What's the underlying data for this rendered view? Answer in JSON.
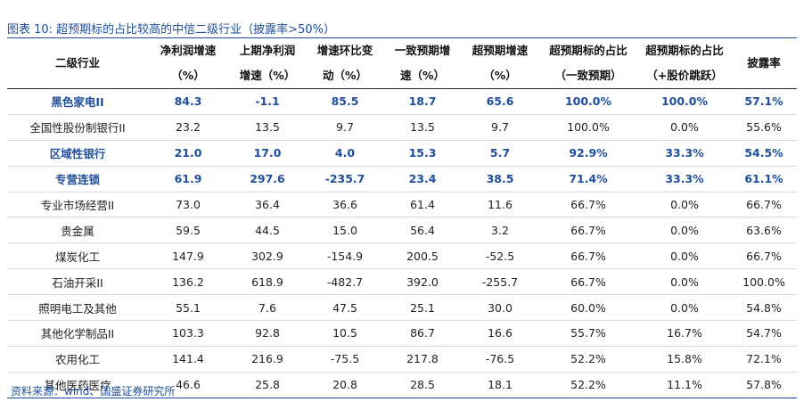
{
  "title": "图表 10:  超预期标的占比较高的中信二级行业（披露率>50%）",
  "source": "资料来源：wind、国盛证券研究所",
  "colors": {
    "accent": "#1f4e9c",
    "text": "#222222"
  },
  "headers": [
    [
      "二级行业"
    ],
    [
      "净利润增速",
      "（%）"
    ],
    [
      "上期净利润",
      "增速（%）"
    ],
    [
      "增速环比变",
      "动（%）"
    ],
    [
      "一致预期增",
      "速（%）"
    ],
    [
      "超预期增速",
      "（%）"
    ],
    [
      "超预期标的占比",
      "（一致预期）"
    ],
    [
      "超预期标的占比",
      "（+股价跳跃）"
    ],
    [
      "披露率"
    ]
  ],
  "rows": [
    {
      "highlight": true,
      "cells": [
        "黑色家电II",
        "84.3",
        "-1.1",
        "85.5",
        "18.7",
        "65.6",
        "100.0%",
        "100.0%",
        "57.1%"
      ]
    },
    {
      "highlight": false,
      "cells": [
        "全国性股份制银行II",
        "23.2",
        "13.5",
        "9.7",
        "13.5",
        "9.7",
        "100.0%",
        "0.0%",
        "55.6%"
      ]
    },
    {
      "highlight": true,
      "cells": [
        "区域性银行",
        "21.0",
        "17.0",
        "4.0",
        "15.3",
        "5.7",
        "92.9%",
        "33.3%",
        "54.5%"
      ]
    },
    {
      "highlight": true,
      "cells": [
        "专营连锁",
        "61.9",
        "297.6",
        "-235.7",
        "23.4",
        "38.5",
        "71.4%",
        "33.3%",
        "61.1%"
      ]
    },
    {
      "highlight": false,
      "cells": [
        "专业市场经营II",
        "73.0",
        "36.4",
        "36.6",
        "61.4",
        "11.6",
        "66.7%",
        "0.0%",
        "66.7%"
      ]
    },
    {
      "highlight": false,
      "cells": [
        "贵金属",
        "59.5",
        "44.5",
        "15.0",
        "56.4",
        "3.2",
        "66.7%",
        "0.0%",
        "63.6%"
      ]
    },
    {
      "highlight": false,
      "cells": [
        "煤炭化工",
        "147.9",
        "302.9",
        "-154.9",
        "200.5",
        "-52.5",
        "66.7%",
        "0.0%",
        "66.7%"
      ]
    },
    {
      "highlight": false,
      "cells": [
        "石油开采II",
        "136.2",
        "618.9",
        "-482.7",
        "392.0",
        "-255.7",
        "66.7%",
        "0.0%",
        "100.0%"
      ]
    },
    {
      "highlight": false,
      "cells": [
        "照明电工及其他",
        "55.1",
        "7.6",
        "47.5",
        "25.1",
        "30.0",
        "60.0%",
        "0.0%",
        "54.8%"
      ]
    },
    {
      "highlight": false,
      "cells": [
        "其他化学制品II",
        "103.3",
        "92.8",
        "10.5",
        "86.7",
        "16.6",
        "55.7%",
        "16.7%",
        "54.7%"
      ]
    },
    {
      "highlight": false,
      "cells": [
        "农用化工",
        "141.4",
        "216.9",
        "-75.5",
        "217.8",
        "-76.5",
        "52.2%",
        "15.8%",
        "72.1%"
      ]
    },
    {
      "highlight": false,
      "cells": [
        "其他医药医疗",
        "46.6",
        "25.8",
        "20.8",
        "28.5",
        "18.1",
        "52.2%",
        "11.1%",
        "57.8%"
      ]
    }
  ]
}
